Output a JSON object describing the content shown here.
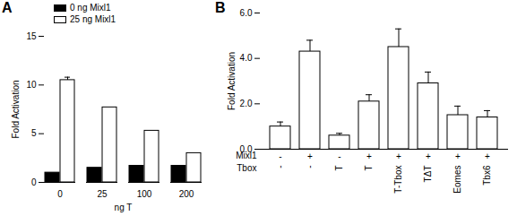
{
  "chart_data": [
    {
      "type": "bar",
      "title": "A",
      "categories": [
        "0",
        "25",
        "100",
        "200"
      ],
      "x_label": "ng T",
      "y_label": "Fold Activation",
      "ylim": [
        0,
        15
      ],
      "yticks": [
        0,
        5,
        10,
        15
      ],
      "legend": "top-left",
      "series": [
        {
          "name": "0 ng Mixl1",
          "color": "#000000",
          "values": [
            1.0,
            1.5,
            1.7,
            1.7
          ],
          "errors": [
            null,
            null,
            null,
            null
          ]
        },
        {
          "name": "25 ng Mixl1",
          "color": "#ffffff",
          "values": [
            10.5,
            7.7,
            5.3,
            3.0
          ],
          "errors": [
            0.3,
            null,
            null,
            null
          ]
        }
      ]
    },
    {
      "type": "bar",
      "title": "B",
      "y_label": "Fold Activation",
      "ylim": [
        0,
        6
      ],
      "yticks": [
        0,
        2,
        4,
        6
      ],
      "color": "#ffffff",
      "category_rows": [
        {
          "name": "Mixl1",
          "labels": [
            "-",
            "+",
            "-",
            "+",
            "+",
            "+",
            "+",
            "+"
          ]
        },
        {
          "name": "Tbox",
          "labels": [
            "-",
            "-",
            "T",
            "T",
            "T-Tbox",
            "TΔT",
            "Eomes",
            "Tbx6"
          ]
        }
      ],
      "values": [
        1.0,
        4.3,
        0.6,
        2.1,
        4.5,
        2.9,
        1.5,
        1.4
      ],
      "errors": [
        0.2,
        0.5,
        0.1,
        0.3,
        0.8,
        0.5,
        0.4,
        0.3
      ]
    }
  ]
}
